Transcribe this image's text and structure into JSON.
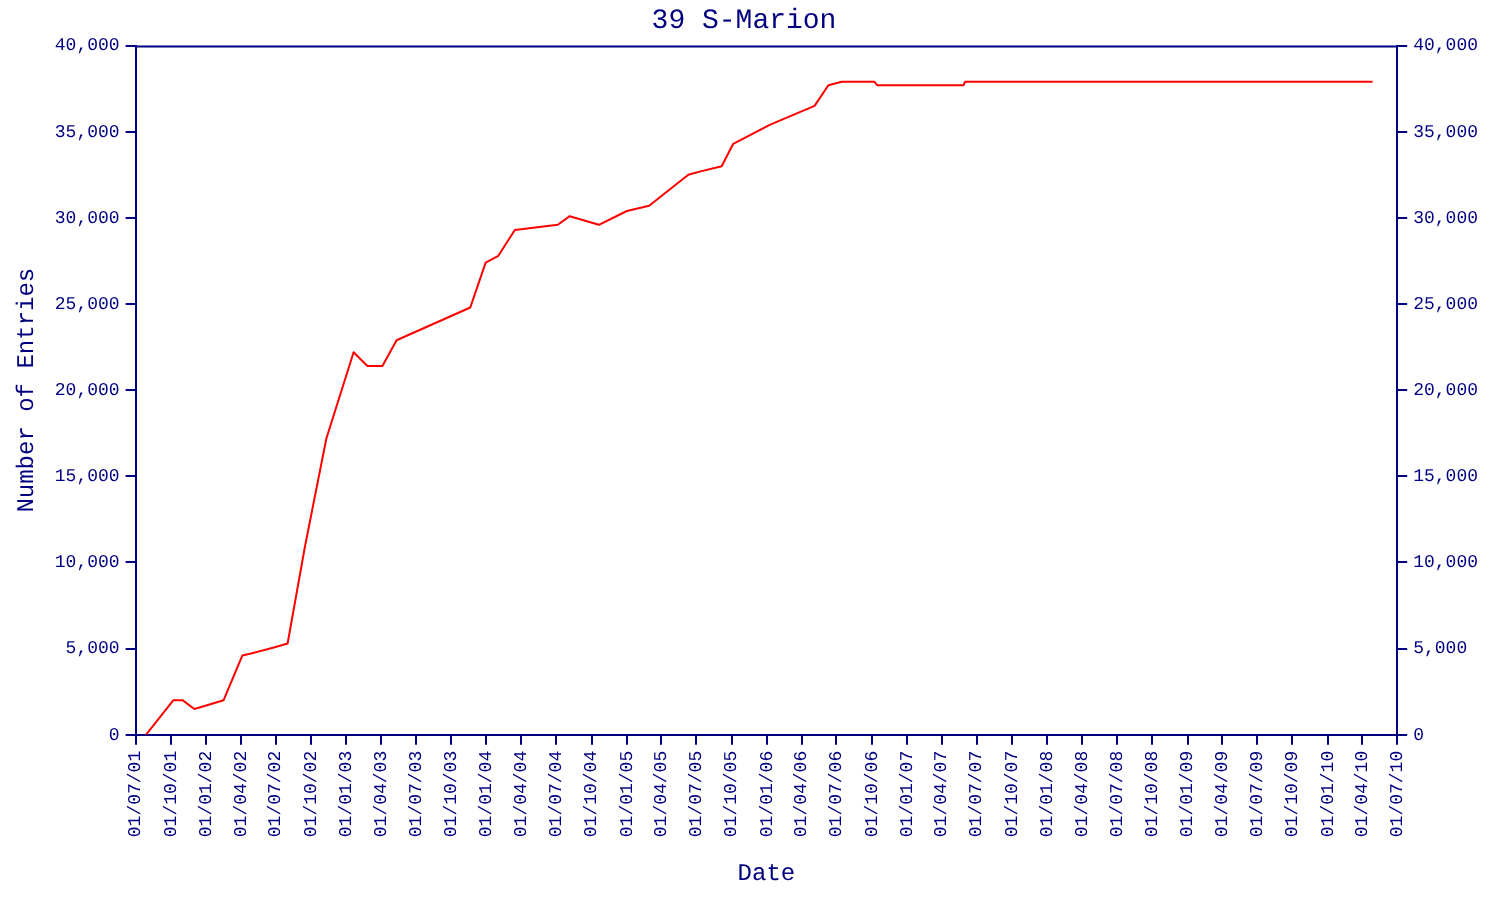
{
  "chart_data": {
    "type": "line",
    "title": "39 S-Marion",
    "xlabel": "Date",
    "ylabel": "Number of Entries",
    "x": [
      "2001-07-28",
      "2001-10-07",
      "2001-11-01",
      "2001-12-01",
      "2002-01-01",
      "2002-02-15",
      "2002-04-05",
      "2002-04-25",
      "2002-07-01",
      "2002-08-01",
      "2002-09-15",
      "2002-11-10",
      "2003-01-20",
      "2003-02-25",
      "2003-04-05",
      "2003-05-12",
      "2003-11-20",
      "2003-12-30",
      "2004-02-01",
      "2004-03-15",
      "2004-07-05",
      "2004-08-05",
      "2004-10-20",
      "2005-01-01",
      "2005-02-28",
      "2005-06-10",
      "2005-07-12",
      "2005-09-05",
      "2005-10-05",
      "2006-01-08",
      "2006-05-05",
      "2006-06-10",
      "2006-07-15",
      "2006-10-08",
      "2006-10-15",
      "2007-05-28",
      "2007-06-01",
      "2010-04-28"
    ],
    "series": [
      {
        "color": "#ff0000",
        "values": [
          0,
          2000,
          2000,
          1500,
          1700,
          2000,
          4600,
          4700,
          5100,
          5300,
          10900,
          17200,
          22200,
          21400,
          21400,
          22900,
          24800,
          27400,
          27800,
          29300,
          29600,
          30100,
          29600,
          30400,
          30700,
          32500,
          32700,
          33000,
          34300,
          35400,
          36500,
          37700,
          37900,
          37900,
          37700,
          37700,
          37900,
          37900
        ]
      }
    ],
    "xlim": [
      "2001-07-01",
      "2010-07-01"
    ],
    "xticks": [
      {
        "value": "2001-07-01",
        "label": "01/07/01"
      },
      {
        "value": "2001-10-01",
        "label": "01/10/01"
      },
      {
        "value": "2002-01-01",
        "label": "01/01/02"
      },
      {
        "value": "2002-04-01",
        "label": "01/04/02"
      },
      {
        "value": "2002-07-01",
        "label": "01/07/02"
      },
      {
        "value": "2002-10-01",
        "label": "01/10/02"
      },
      {
        "value": "2003-01-01",
        "label": "01/01/03"
      },
      {
        "value": "2003-04-01",
        "label": "01/04/03"
      },
      {
        "value": "2003-07-01",
        "label": "01/07/03"
      },
      {
        "value": "2003-10-01",
        "label": "01/10/03"
      },
      {
        "value": "2004-01-01",
        "label": "01/01/04"
      },
      {
        "value": "2004-04-01",
        "label": "01/04/04"
      },
      {
        "value": "2004-07-01",
        "label": "01/07/04"
      },
      {
        "value": "2004-10-01",
        "label": "01/10/04"
      },
      {
        "value": "2005-01-01",
        "label": "01/01/05"
      },
      {
        "value": "2005-04-01",
        "label": "01/04/05"
      },
      {
        "value": "2005-07-01",
        "label": "01/07/05"
      },
      {
        "value": "2005-10-01",
        "label": "01/10/05"
      },
      {
        "value": "2006-01-01",
        "label": "01/01/06"
      },
      {
        "value": "2006-04-01",
        "label": "01/04/06"
      },
      {
        "value": "2006-07-01",
        "label": "01/07/06"
      },
      {
        "value": "2006-10-01",
        "label": "01/10/06"
      },
      {
        "value": "2007-01-01",
        "label": "01/01/07"
      },
      {
        "value": "2007-04-01",
        "label": "01/04/07"
      },
      {
        "value": "2007-07-01",
        "label": "01/07/07"
      },
      {
        "value": "2007-10-01",
        "label": "01/10/07"
      },
      {
        "value": "2008-01-01",
        "label": "01/01/08"
      },
      {
        "value": "2008-04-01",
        "label": "01/04/08"
      },
      {
        "value": "2008-07-01",
        "label": "01/07/08"
      },
      {
        "value": "2008-10-01",
        "label": "01/10/08"
      },
      {
        "value": "2009-01-01",
        "label": "01/01/09"
      },
      {
        "value": "2009-04-01",
        "label": "01/04/09"
      },
      {
        "value": "2009-07-01",
        "label": "01/07/09"
      },
      {
        "value": "2009-10-01",
        "label": "01/10/09"
      },
      {
        "value": "2010-01-01",
        "label": "01/01/10"
      },
      {
        "value": "2010-04-01",
        "label": "01/04/10"
      },
      {
        "value": "2010-07-01",
        "label": "01/07/10"
      }
    ],
    "ylim": [
      0,
      40000
    ],
    "yticks": [
      0,
      {
        "value": 5000,
        "label": "5,000"
      },
      {
        "value": 10000,
        "label": "10,000"
      },
      {
        "value": 15000,
        "label": "15,000"
      },
      {
        "value": 20000,
        "label": "20,000"
      },
      {
        "value": 25000,
        "label": "25,000"
      },
      {
        "value": 30000,
        "label": "30,000"
      },
      {
        "value": 35000,
        "label": "35,000"
      },
      {
        "value": 40000,
        "label": "40,000"
      }
    ],
    "y2lim": [
      0,
      40000
    ],
    "y2ticks": [
      0,
      {
        "value": 5000,
        "label": "5,000"
      },
      {
        "value": 10000,
        "label": "10,000"
      },
      {
        "value": 15000,
        "label": "15,000"
      },
      {
        "value": 20000,
        "label": "20,000"
      },
      {
        "value": 25000,
        "label": "25,000"
      },
      {
        "value": 30000,
        "label": "30,000"
      },
      {
        "value": 35000,
        "label": "35,000"
      },
      {
        "value": 40000,
        "label": "40,000"
      }
    ],
    "grid": false,
    "legend": false,
    "marker": "none",
    "line_style": "solid"
  }
}
